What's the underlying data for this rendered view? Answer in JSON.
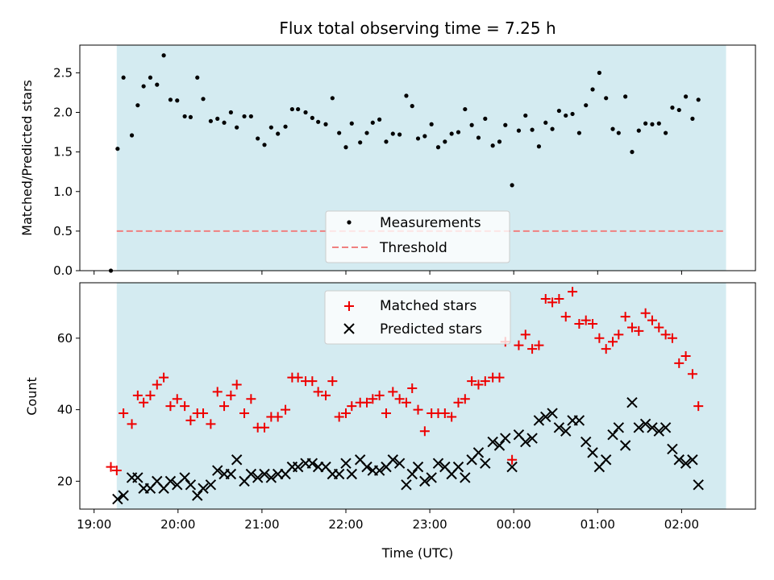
{
  "chart_data": {
    "type": "scatter",
    "title": "Flux total observing time = 7.25 h",
    "xlabel": "Time (UTC)",
    "x_unit": "hours since 19:00 UTC",
    "xlim": [
      -0.17,
      7.88
    ],
    "xticks": [
      0,
      1,
      2,
      3,
      4,
      5,
      6,
      7
    ],
    "xtick_labels": [
      "19:00",
      "20:00",
      "21:00",
      "22:00",
      "23:00",
      "00:00",
      "01:00",
      "02:00"
    ],
    "observing_window": [
      0.27,
      7.53
    ],
    "colors": {
      "window": "#d4ebf1",
      "measurements": "#000000",
      "threshold": "#f08080",
      "matched": "#ee0000",
      "predicted": "#000000"
    },
    "top": {
      "ylabel": "Matched/Predicted stars",
      "ylim": [
        0,
        2.85
      ],
      "yticks": [
        0.0,
        0.5,
        1.0,
        1.5,
        2.0,
        2.5
      ],
      "ytick_labels": [
        "0.0",
        "0.5",
        "1.0",
        "1.5",
        "2.0",
        "2.5"
      ],
      "legend": [
        "Measurements",
        "Threshold"
      ],
      "legend_position": "lower-center",
      "threshold": 0.5,
      "measurements": [
        [
          0.2,
          0.0
        ],
        [
          0.28,
          1.54
        ],
        [
          0.35,
          2.44
        ],
        [
          0.45,
          1.71
        ],
        [
          0.52,
          2.09
        ],
        [
          0.59,
          2.33
        ],
        [
          0.67,
          2.44
        ],
        [
          0.75,
          2.35
        ],
        [
          0.83,
          2.72
        ],
        [
          0.91,
          2.16
        ],
        [
          0.99,
          2.15
        ],
        [
          1.08,
          1.95
        ],
        [
          1.15,
          1.94
        ],
        [
          1.23,
          2.44
        ],
        [
          1.3,
          2.17
        ],
        [
          1.39,
          1.89
        ],
        [
          1.47,
          1.92
        ],
        [
          1.55,
          1.87
        ],
        [
          1.63,
          2.0
        ],
        [
          1.7,
          1.81
        ],
        [
          1.79,
          1.95
        ],
        [
          1.87,
          1.95
        ],
        [
          1.95,
          1.67
        ],
        [
          2.03,
          1.59
        ],
        [
          2.11,
          1.81
        ],
        [
          2.19,
          1.73
        ],
        [
          2.28,
          1.82
        ],
        [
          2.36,
          2.04
        ],
        [
          2.43,
          2.04
        ],
        [
          2.52,
          2.0
        ],
        [
          2.6,
          1.93
        ],
        [
          2.67,
          1.88
        ],
        [
          2.76,
          1.85
        ],
        [
          2.84,
          2.18
        ],
        [
          2.92,
          1.74
        ],
        [
          3.0,
          1.56
        ],
        [
          3.07,
          1.86
        ],
        [
          3.17,
          1.62
        ],
        [
          3.25,
          1.74
        ],
        [
          3.32,
          1.87
        ],
        [
          3.4,
          1.91
        ],
        [
          3.48,
          1.63
        ],
        [
          3.56,
          1.73
        ],
        [
          3.64,
          1.72
        ],
        [
          3.72,
          2.21
        ],
        [
          3.79,
          2.08
        ],
        [
          3.86,
          1.67
        ],
        [
          3.94,
          1.7
        ],
        [
          4.02,
          1.85
        ],
        [
          4.1,
          1.56
        ],
        [
          4.18,
          1.63
        ],
        [
          4.26,
          1.73
        ],
        [
          4.34,
          1.75
        ],
        [
          4.42,
          2.04
        ],
        [
          4.5,
          1.84
        ],
        [
          4.58,
          1.68
        ],
        [
          4.66,
          1.92
        ],
        [
          4.75,
          1.58
        ],
        [
          4.83,
          1.63
        ],
        [
          4.9,
          1.84
        ],
        [
          4.98,
          1.08
        ],
        [
          5.06,
          1.77
        ],
        [
          5.14,
          1.96
        ],
        [
          5.22,
          1.78
        ],
        [
          5.3,
          1.57
        ],
        [
          5.38,
          1.87
        ],
        [
          5.46,
          1.79
        ],
        [
          5.54,
          2.02
        ],
        [
          5.62,
          1.96
        ],
        [
          5.7,
          1.98
        ],
        [
          5.78,
          1.74
        ],
        [
          5.86,
          2.09
        ],
        [
          5.94,
          2.29
        ],
        [
          6.02,
          2.5
        ],
        [
          6.1,
          2.18
        ],
        [
          6.18,
          1.79
        ],
        [
          6.25,
          1.74
        ],
        [
          6.33,
          2.2
        ],
        [
          6.41,
          1.5
        ],
        [
          6.49,
          1.77
        ],
        [
          6.57,
          1.86
        ],
        [
          6.65,
          1.85
        ],
        [
          6.73,
          1.86
        ],
        [
          6.81,
          1.74
        ],
        [
          6.89,
          2.06
        ],
        [
          6.97,
          2.03
        ],
        [
          7.05,
          2.2
        ],
        [
          7.13,
          1.92
        ],
        [
          7.2,
          2.16
        ]
      ]
    },
    "bottom": {
      "ylabel": "Count",
      "ylim": [
        12.2,
        75.5
      ],
      "yticks": [
        20,
        40,
        60
      ],
      "ytick_labels": [
        "20",
        "40",
        "60"
      ],
      "legend": [
        "Matched stars",
        "Predicted stars"
      ],
      "legend_position": "upper-center",
      "matched": [
        [
          0.2,
          24
        ],
        [
          0.27,
          23
        ],
        [
          0.35,
          39
        ],
        [
          0.45,
          36
        ],
        [
          0.52,
          44
        ],
        [
          0.59,
          42
        ],
        [
          0.67,
          44
        ],
        [
          0.75,
          47
        ],
        [
          0.83,
          49
        ],
        [
          0.91,
          41
        ],
        [
          0.99,
          43
        ],
        [
          1.08,
          41
        ],
        [
          1.15,
          37
        ],
        [
          1.23,
          39
        ],
        [
          1.3,
          39
        ],
        [
          1.39,
          36
        ],
        [
          1.47,
          45
        ],
        [
          1.55,
          41
        ],
        [
          1.63,
          44
        ],
        [
          1.7,
          47
        ],
        [
          1.79,
          39
        ],
        [
          1.87,
          43
        ],
        [
          1.95,
          35
        ],
        [
          2.03,
          35
        ],
        [
          2.11,
          38
        ],
        [
          2.19,
          38
        ],
        [
          2.28,
          40
        ],
        [
          2.36,
          49
        ],
        [
          2.43,
          49
        ],
        [
          2.52,
          48
        ],
        [
          2.6,
          48
        ],
        [
          2.67,
          45
        ],
        [
          2.76,
          44
        ],
        [
          2.84,
          48
        ],
        [
          2.92,
          38
        ],
        [
          3.0,
          39
        ],
        [
          3.07,
          41
        ],
        [
          3.17,
          42
        ],
        [
          3.25,
          42
        ],
        [
          3.32,
          43
        ],
        [
          3.4,
          44
        ],
        [
          3.48,
          39
        ],
        [
          3.56,
          45
        ],
        [
          3.64,
          43
        ],
        [
          3.72,
          42
        ],
        [
          3.79,
          46
        ],
        [
          3.86,
          40
        ],
        [
          3.94,
          34
        ],
        [
          4.02,
          39
        ],
        [
          4.1,
          39
        ],
        [
          4.18,
          39
        ],
        [
          4.26,
          38
        ],
        [
          4.34,
          42
        ],
        [
          4.42,
          43
        ],
        [
          4.5,
          48
        ],
        [
          4.58,
          47
        ],
        [
          4.66,
          48
        ],
        [
          4.75,
          49
        ],
        [
          4.83,
          49
        ],
        [
          4.9,
          59
        ],
        [
          4.98,
          26
        ],
        [
          5.06,
          58
        ],
        [
          5.14,
          61
        ],
        [
          5.22,
          57
        ],
        [
          5.3,
          58
        ],
        [
          5.38,
          71
        ],
        [
          5.46,
          70
        ],
        [
          5.54,
          71
        ],
        [
          5.62,
          66
        ],
        [
          5.7,
          73
        ],
        [
          5.78,
          64
        ],
        [
          5.86,
          65
        ],
        [
          5.94,
          64
        ],
        [
          6.02,
          60
        ],
        [
          6.1,
          57
        ],
        [
          6.18,
          59
        ],
        [
          6.25,
          61
        ],
        [
          6.33,
          66
        ],
        [
          6.41,
          63
        ],
        [
          6.49,
          62
        ],
        [
          6.57,
          67
        ],
        [
          6.65,
          65
        ],
        [
          6.73,
          63
        ],
        [
          6.81,
          61
        ],
        [
          6.89,
          60
        ],
        [
          6.97,
          53
        ],
        [
          7.05,
          55
        ],
        [
          7.13,
          50
        ],
        [
          7.2,
          41
        ]
      ],
      "predicted": [
        [
          0.28,
          15
        ],
        [
          0.35,
          16
        ],
        [
          0.45,
          21
        ],
        [
          0.52,
          21
        ],
        [
          0.59,
          18
        ],
        [
          0.67,
          18
        ],
        [
          0.75,
          20
        ],
        [
          0.83,
          18
        ],
        [
          0.91,
          20
        ],
        [
          0.99,
          19
        ],
        [
          1.08,
          21
        ],
        [
          1.15,
          19
        ],
        [
          1.23,
          16
        ],
        [
          1.3,
          18
        ],
        [
          1.39,
          19
        ],
        [
          1.47,
          23
        ],
        [
          1.55,
          22
        ],
        [
          1.63,
          22
        ],
        [
          1.7,
          26
        ],
        [
          1.79,
          20
        ],
        [
          1.87,
          22
        ],
        [
          1.95,
          21
        ],
        [
          2.03,
          22
        ],
        [
          2.11,
          21
        ],
        [
          2.19,
          22
        ],
        [
          2.28,
          22
        ],
        [
          2.36,
          24
        ],
        [
          2.43,
          24
        ],
        [
          2.52,
          25
        ],
        [
          2.6,
          25
        ],
        [
          2.67,
          24
        ],
        [
          2.76,
          24
        ],
        [
          2.84,
          22
        ],
        [
          2.92,
          22
        ],
        [
          3.0,
          25
        ],
        [
          3.07,
          22
        ],
        [
          3.17,
          26
        ],
        [
          3.25,
          24
        ],
        [
          3.32,
          23
        ],
        [
          3.4,
          23
        ],
        [
          3.48,
          24
        ],
        [
          3.56,
          26
        ],
        [
          3.64,
          25
        ],
        [
          3.72,
          19
        ],
        [
          3.79,
          22
        ],
        [
          3.86,
          24
        ],
        [
          3.94,
          20
        ],
        [
          4.02,
          21
        ],
        [
          4.1,
          25
        ],
        [
          4.18,
          24
        ],
        [
          4.26,
          22
        ],
        [
          4.34,
          24
        ],
        [
          4.42,
          21
        ],
        [
          4.5,
          26
        ],
        [
          4.58,
          28
        ],
        [
          4.66,
          25
        ],
        [
          4.75,
          31
        ],
        [
          4.83,
          30
        ],
        [
          4.9,
          32
        ],
        [
          4.98,
          24
        ],
        [
          5.06,
          33
        ],
        [
          5.14,
          31
        ],
        [
          5.22,
          32
        ],
        [
          5.3,
          37
        ],
        [
          5.38,
          38
        ],
        [
          5.46,
          39
        ],
        [
          5.54,
          35
        ],
        [
          5.62,
          34
        ],
        [
          5.7,
          37
        ],
        [
          5.78,
          37
        ],
        [
          5.86,
          31
        ],
        [
          5.94,
          28
        ],
        [
          6.02,
          24
        ],
        [
          6.1,
          26
        ],
        [
          6.18,
          33
        ],
        [
          6.25,
          35
        ],
        [
          6.33,
          30
        ],
        [
          6.41,
          42
        ],
        [
          6.49,
          35
        ],
        [
          6.57,
          36
        ],
        [
          6.65,
          35
        ],
        [
          6.73,
          34
        ],
        [
          6.81,
          35
        ],
        [
          6.89,
          29
        ],
        [
          6.97,
          26
        ],
        [
          7.05,
          25
        ],
        [
          7.13,
          26
        ],
        [
          7.2,
          19
        ]
      ]
    }
  }
}
